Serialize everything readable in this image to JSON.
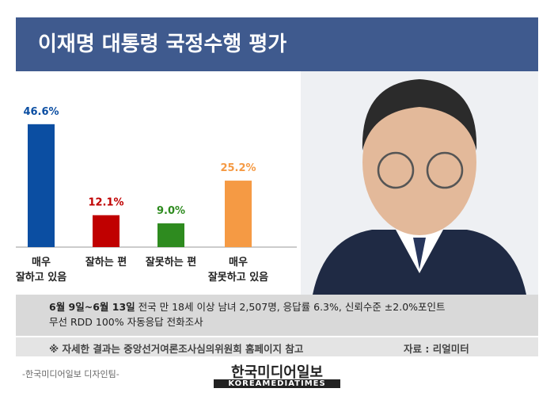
{
  "chart_data": {
    "type": "bar",
    "title": "이재명 대통령 국정수행 평가",
    "categories": [
      "매우\n잘하고 있음",
      "잘하는 편",
      "잘못하는 편",
      "매우\n잘못하고 있음"
    ],
    "values": [
      46.6,
      12.1,
      9.0,
      25.2
    ],
    "value_labels": [
      "46.6%",
      "12.1%",
      "9.0%",
      "25.2%"
    ],
    "colors": [
      "#0b4ea2",
      "#c00000",
      "#2e8b1f",
      "#f59a44"
    ]
  },
  "survey": {
    "period": "6월 9일~6월 13일",
    "details": "전국 만 18세 이상 남녀 2,507명, 응답률 6.3%, 신뢰수준 ±2.0%포인트\n무선 RDD 100% 자동응답 전화조사"
  },
  "notes": {
    "reference": "※ 자세한 결과는 중앙선거여론조사심의위원회 홈페이지 참고",
    "source": "자료 : 리얼미터"
  },
  "footer": {
    "credit": "-한국미디어일보 디자인팀-",
    "logo_kr": "한국미디어일보",
    "logo_en": "KOREAMEDIATIMES"
  }
}
